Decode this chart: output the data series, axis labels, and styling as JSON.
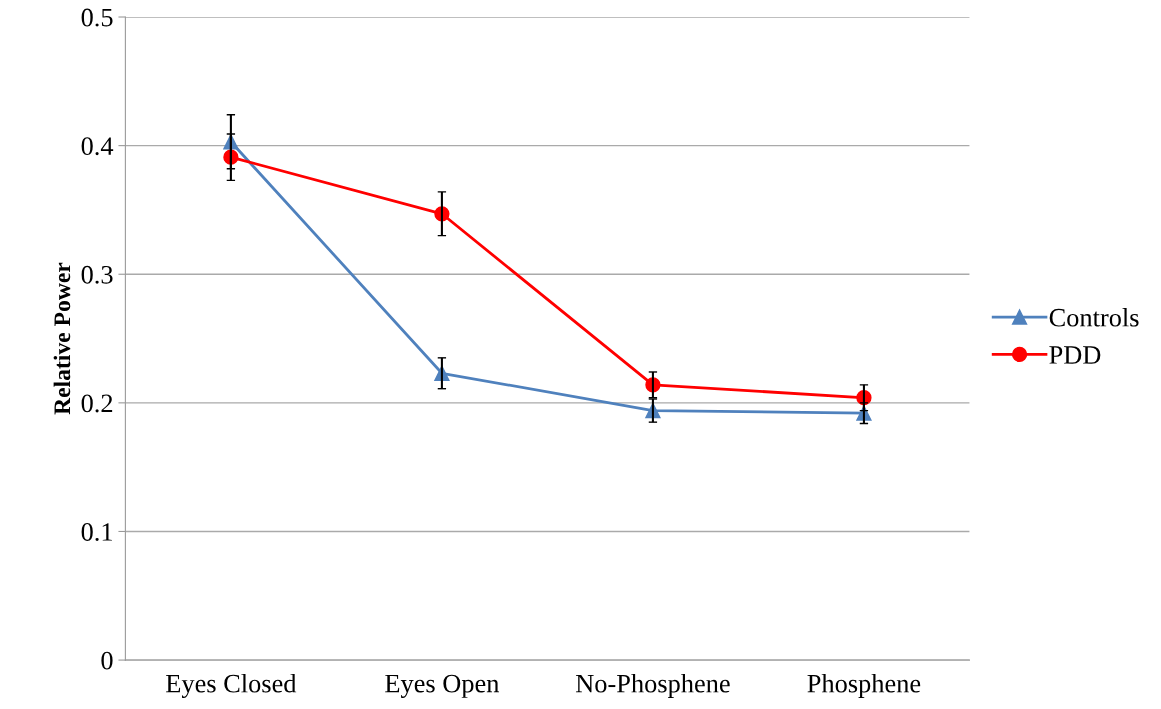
{
  "chart_data": {
    "type": "line",
    "ylabel": "Relative Power",
    "categories": [
      "Eyes Closed",
      "Eyes Open",
      "No-Phosphene",
      "Phosphene"
    ],
    "series": [
      {
        "name": "Controls",
        "color": "#4f81bd",
        "marker": "triangle",
        "values": [
          0.403,
          0.223,
          0.194,
          0.192
        ],
        "errors": [
          0.021,
          0.012,
          0.009,
          0.008
        ]
      },
      {
        "name": "PDD",
        "color": "#ff0000",
        "marker": "circle",
        "values": [
          0.391,
          0.347,
          0.214,
          0.204
        ],
        "errors": [
          0.018,
          0.017,
          0.01,
          0.01
        ]
      }
    ],
    "ylim": [
      0,
      0.5
    ],
    "yticks": [
      0,
      0.1,
      0.2,
      0.3,
      0.4,
      0.5
    ],
    "grid": "y",
    "legend": "right",
    "line_style": "solid"
  }
}
